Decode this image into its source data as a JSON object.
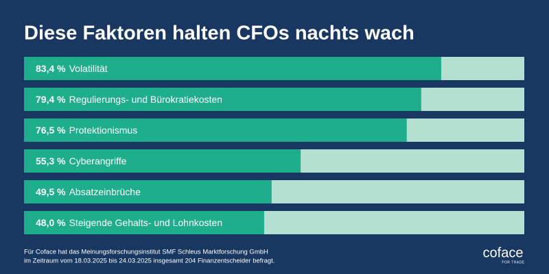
{
  "chart_data": {
    "type": "bar",
    "orientation": "horizontal",
    "title": "Diese Faktoren halten CFOs nachts wach",
    "categories": [
      "Volatilität",
      "Regulierungs- und Bürokratiekosten",
      "Protektionismus",
      "Cyberangriffe",
      "Absatzeinbrüche",
      "Steigende Gehalts- und Lohnkosten"
    ],
    "values": [
      83.4,
      79.4,
      76.5,
      55.3,
      49.5,
      48.0
    ],
    "value_labels": [
      "83,4 %",
      "79,4 %",
      "76,5 %",
      "55,3 %",
      "49,5 %",
      "48,0 %"
    ],
    "color": "#1fae8c",
    "track_color": "#b4e0d1",
    "xlim": [
      0,
      100
    ],
    "footnote": [
      "Für Coface hat das Meinungsforschungsinstitut SMF Schleus Marktforschung GmbH",
      "im Zeitraum vom 18.03.2025 bis 24.03.2025 insgesamt 204 Finanzentscheider befragt."
    ],
    "logo": {
      "name": "coface",
      "tagline": "FOR TRADE"
    }
  }
}
